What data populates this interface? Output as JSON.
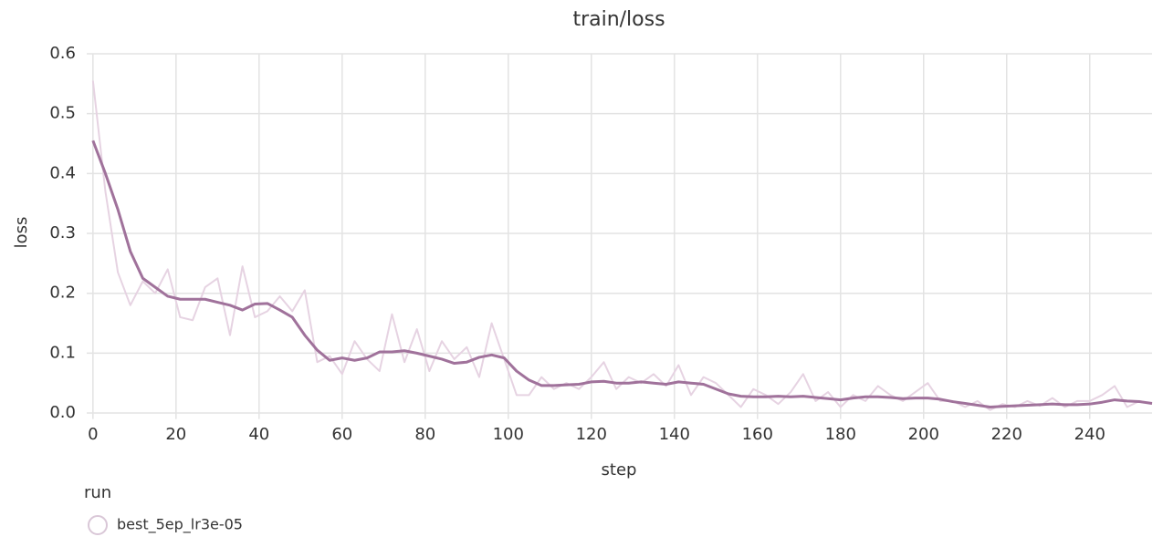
{
  "chart_data": {
    "type": "line",
    "title": "train/loss",
    "x_label": "step",
    "y_label": "loss",
    "legend_title": "run",
    "x": [
      0,
      3,
      6,
      9,
      12,
      15,
      18,
      21,
      24,
      27,
      30,
      33,
      36,
      39,
      42,
      45,
      48,
      51,
      54,
      57,
      60,
      63,
      66,
      69,
      72,
      75,
      78,
      81,
      84,
      87,
      90,
      93,
      96,
      99,
      102,
      105,
      108,
      111,
      114,
      117,
      120,
      123,
      126,
      129,
      132,
      135,
      138,
      141,
      144,
      147,
      150,
      153,
      156,
      159,
      162,
      165,
      168,
      171,
      174,
      177,
      180,
      183,
      186,
      189,
      192,
      195,
      198,
      201,
      204,
      207,
      210,
      213,
      216,
      219,
      222,
      225,
      228,
      231,
      234,
      237,
      240,
      243,
      246,
      249,
      252,
      255
    ],
    "series": [
      {
        "color": "#e6d3e2",
        "values": [
          0.555,
          0.37,
          0.235,
          0.18,
          0.22,
          0.2,
          0.24,
          0.16,
          0.155,
          0.21,
          0.225,
          0.13,
          0.245,
          0.16,
          0.17,
          0.195,
          0.17,
          0.205,
          0.085,
          0.095,
          0.065,
          0.12,
          0.09,
          0.07,
          0.165,
          0.085,
          0.14,
          0.07,
          0.12,
          0.09,
          0.11,
          0.06,
          0.15,
          0.09,
          0.03,
          0.03,
          0.06,
          0.04,
          0.05,
          0.04,
          0.06,
          0.085,
          0.04,
          0.06,
          0.05,
          0.065,
          0.045,
          0.08,
          0.03,
          0.06,
          0.05,
          0.03,
          0.01,
          0.04,
          0.03,
          0.015,
          0.035,
          0.065,
          0.02,
          0.035,
          0.01,
          0.03,
          0.02,
          0.045,
          0.03,
          0.02,
          0.035,
          0.05,
          0.02,
          0.02,
          0.01,
          0.02,
          0.005,
          0.015,
          0.01,
          0.02,
          0.012,
          0.025,
          0.01,
          0.02,
          0.02,
          0.03,
          0.045,
          0.01,
          0.02,
          0.015
        ]
      },
      {
        "name": "best_5ep_lr3e-05",
        "color": "#a0729b",
        "values": [
          0.455,
          0.4,
          0.34,
          0.27,
          0.225,
          0.21,
          0.195,
          0.19,
          0.19,
          0.19,
          0.185,
          0.18,
          0.172,
          0.182,
          0.183,
          0.172,
          0.16,
          0.13,
          0.105,
          0.088,
          0.092,
          0.088,
          0.092,
          0.102,
          0.102,
          0.104,
          0.1,
          0.095,
          0.09,
          0.083,
          0.085,
          0.093,
          0.097,
          0.092,
          0.07,
          0.055,
          0.046,
          0.046,
          0.047,
          0.048,
          0.052,
          0.053,
          0.05,
          0.05,
          0.052,
          0.05,
          0.048,
          0.052,
          0.05,
          0.048,
          0.04,
          0.032,
          0.028,
          0.027,
          0.027,
          0.028,
          0.027,
          0.028,
          0.026,
          0.024,
          0.022,
          0.025,
          0.027,
          0.027,
          0.026,
          0.024,
          0.025,
          0.025,
          0.023,
          0.019,
          0.016,
          0.013,
          0.01,
          0.011,
          0.012,
          0.013,
          0.014,
          0.015,
          0.014,
          0.014,
          0.015,
          0.018,
          0.022,
          0.02,
          0.019,
          0.016
        ]
      }
    ],
    "xlim": [
      -1.5,
      255
    ],
    "ylim": [
      -0.01,
      0.6
    ],
    "xticks": [
      0,
      20,
      40,
      60,
      80,
      100,
      120,
      140,
      160,
      180,
      200,
      220,
      240
    ],
    "yticks": [
      {
        "value": 0,
        "label": "0.0"
      },
      0.1,
      0.2,
      0.3,
      0.4,
      0.5,
      0.6
    ],
    "grid": true
  }
}
